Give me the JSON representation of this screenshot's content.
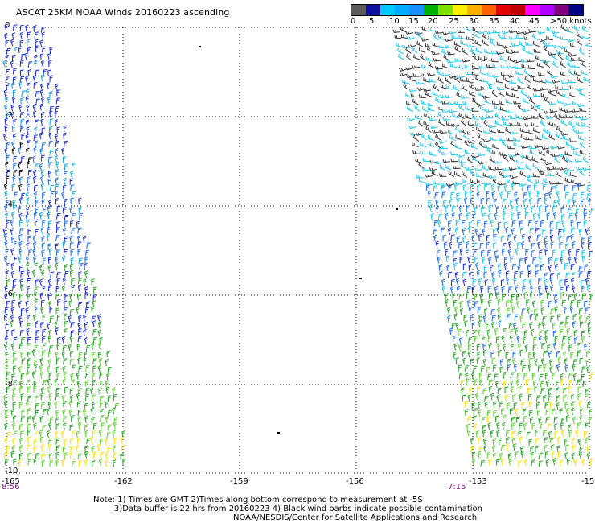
{
  "header": {
    "title": "ASCAT 25KM NOAA Winds 20160223 ascending"
  },
  "legend": {
    "colors": [
      "#5a5a5a",
      "#1010a0",
      "#00c8ff",
      "#00aaff",
      "#1a8fff",
      "#00b000",
      "#80e000",
      "#ffee00",
      "#ffb000",
      "#ff6000",
      "#e00000",
      "#c00000",
      "#ff00ff",
      "#b000ff",
      "#800080",
      "#000080"
    ],
    "ticks": [
      "0",
      "5",
      "10",
      "15",
      "20",
      "25",
      "30",
      "35",
      "40",
      "45",
      ">50 knots"
    ]
  },
  "map": {
    "y_labels": [
      "0",
      "-2",
      "-4",
      "-6",
      "-8",
      "-10"
    ],
    "x_labels": [
      "-165",
      "-162",
      "-159",
      "-156",
      "-153",
      "-15"
    ],
    "time_left": "8:56",
    "time_right": "7:15"
  },
  "notes": {
    "line1": "Note: 1) Times are GMT 2)Times along bottom correspond to measurement at -5S",
    "line2": "3)Data buffer is 22 hrs from 20160223 4) Black wind barbs indicate possible contamination",
    "line3": "NOAA/NESDIS/Center for Satellite Applications and Research"
  }
}
